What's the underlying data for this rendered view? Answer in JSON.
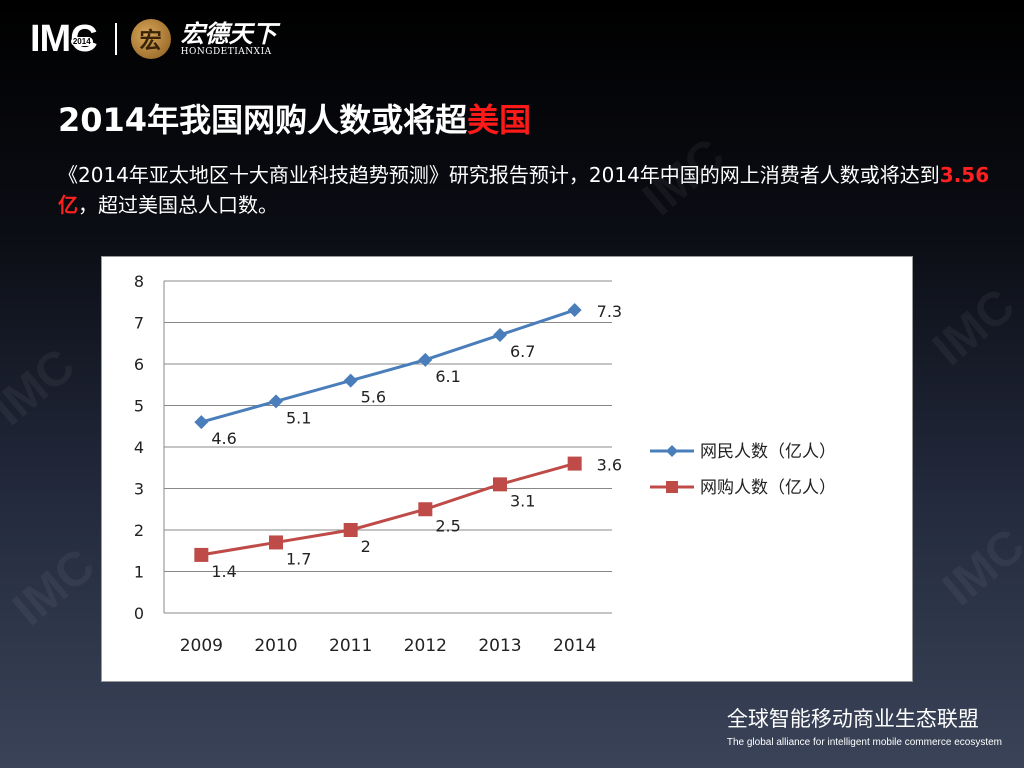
{
  "header": {
    "imc_logo": "IMC",
    "imc_year": "2014",
    "partner_logo_glyph": "宏",
    "partner_name_cn": "宏德天下",
    "partner_name_en": "HONGDETIANXIA"
  },
  "slide": {
    "title_main": "2014年我国网购人数或将超",
    "title_red": "美国",
    "desc_part1": "《2014年亚太地区十大商业科技趋势预测》研究报告预计，2014年中国的网上消费者人数或将达到",
    "desc_highlight": "3.56亿",
    "desc_part2": "，超过美国总人口数。"
  },
  "chart_data": {
    "type": "line",
    "categories": [
      "2009",
      "2010",
      "2011",
      "2012",
      "2013",
      "2014"
    ],
    "ylim": [
      0,
      8
    ],
    "yticks": [
      "0",
      "1",
      "2",
      "3",
      "4",
      "5",
      "6",
      "7",
      "8"
    ],
    "grid": true,
    "legend_position": "right",
    "series": [
      {
        "name": "网民人数（亿人）",
        "values": [
          4.6,
          5.1,
          5.6,
          6.1,
          6.7,
          7.3
        ],
        "labels": [
          "4.6",
          "5.1",
          "5.6",
          "6.1",
          "6.7",
          "7.3"
        ],
        "color": "#4a7ebb",
        "marker": "diamond"
      },
      {
        "name": "网购人数（亿人）",
        "values": [
          1.4,
          1.7,
          2,
          2.5,
          3.1,
          3.6
        ],
        "labels": [
          "1.4",
          "1.7",
          "2",
          "2.5",
          "3.1",
          "3.6"
        ],
        "color": "#be4b48",
        "marker": "square"
      }
    ]
  },
  "footer": {
    "cn": "全球智能移动商业生态联盟",
    "en": "The global alliance for intelligent mobile commerce ecosystem"
  }
}
